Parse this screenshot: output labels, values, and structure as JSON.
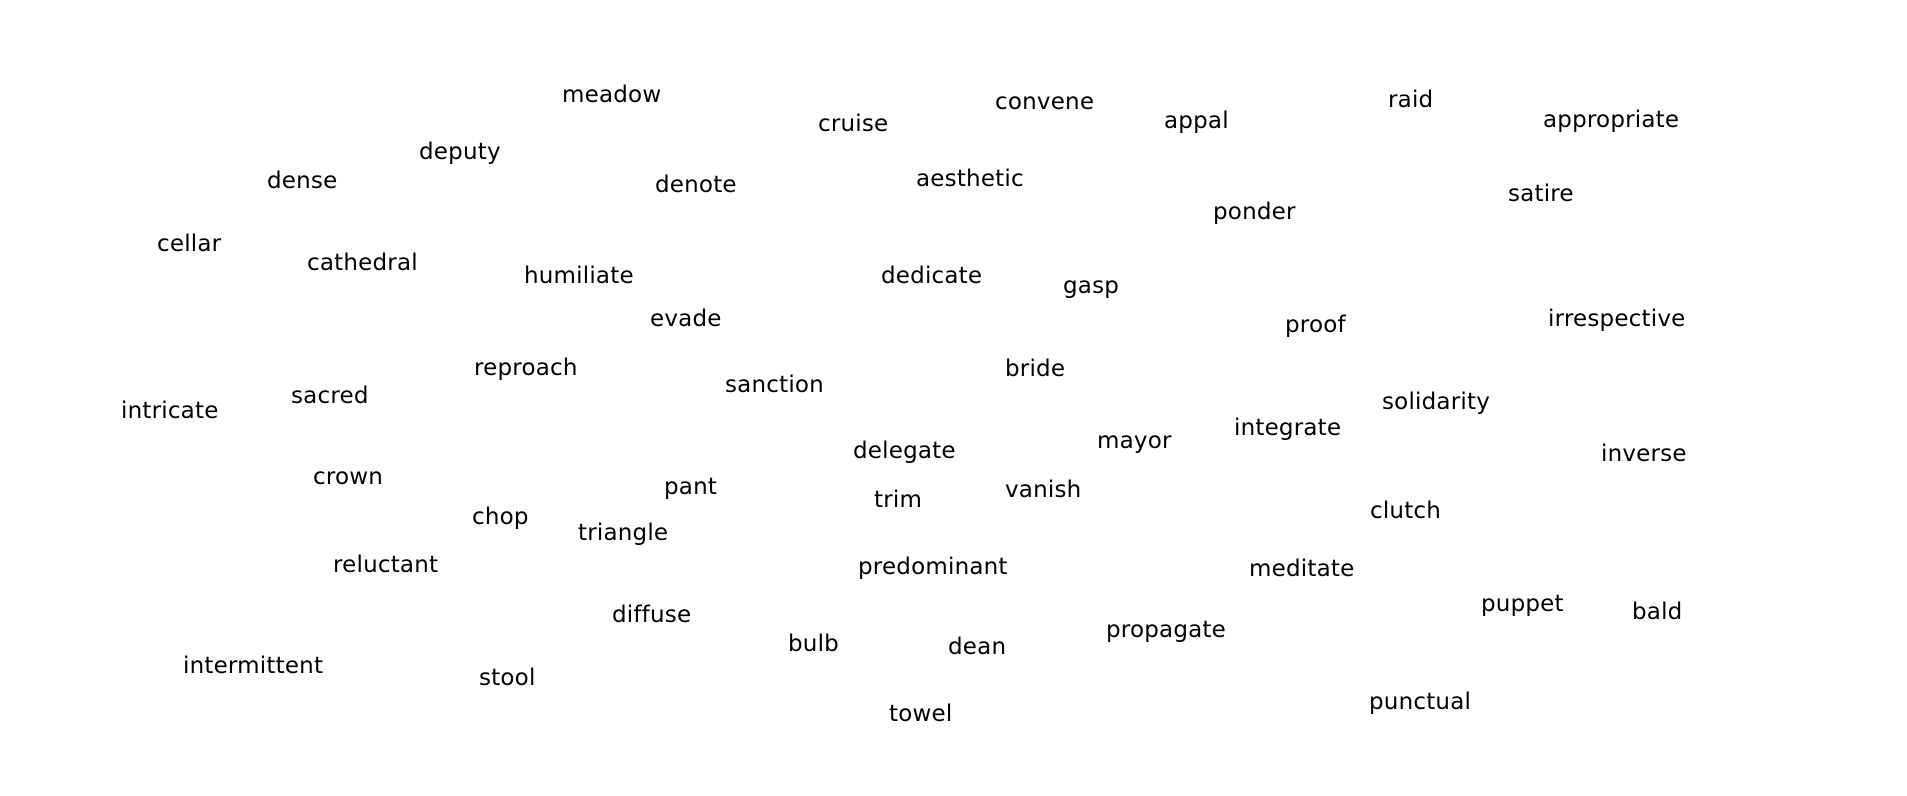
{
  "colors": {
    "background": "#ffffff",
    "text": "#000000"
  },
  "words": [
    "meadow",
    "cruise",
    "convene",
    "appal",
    "raid",
    "appropriate",
    "deputy",
    "dense",
    "denote",
    "aesthetic",
    "ponder",
    "satire",
    "cellar",
    "cathedral",
    "humiliate",
    "dedicate",
    "gasp",
    "evade",
    "proof",
    "irrespective",
    "reproach",
    "sanction",
    "bride",
    "sacred",
    "intricate",
    "solidarity",
    "integrate",
    "mayor",
    "delegate",
    "inverse",
    "crown",
    "pant",
    "vanish",
    "trim",
    "chop",
    "clutch",
    "triangle",
    "reluctant",
    "predominant",
    "meditate",
    "diffuse",
    "puppet",
    "bald",
    "propagate",
    "bulb",
    "dean",
    "intermittent",
    "stool",
    "punctual",
    "towel"
  ]
}
